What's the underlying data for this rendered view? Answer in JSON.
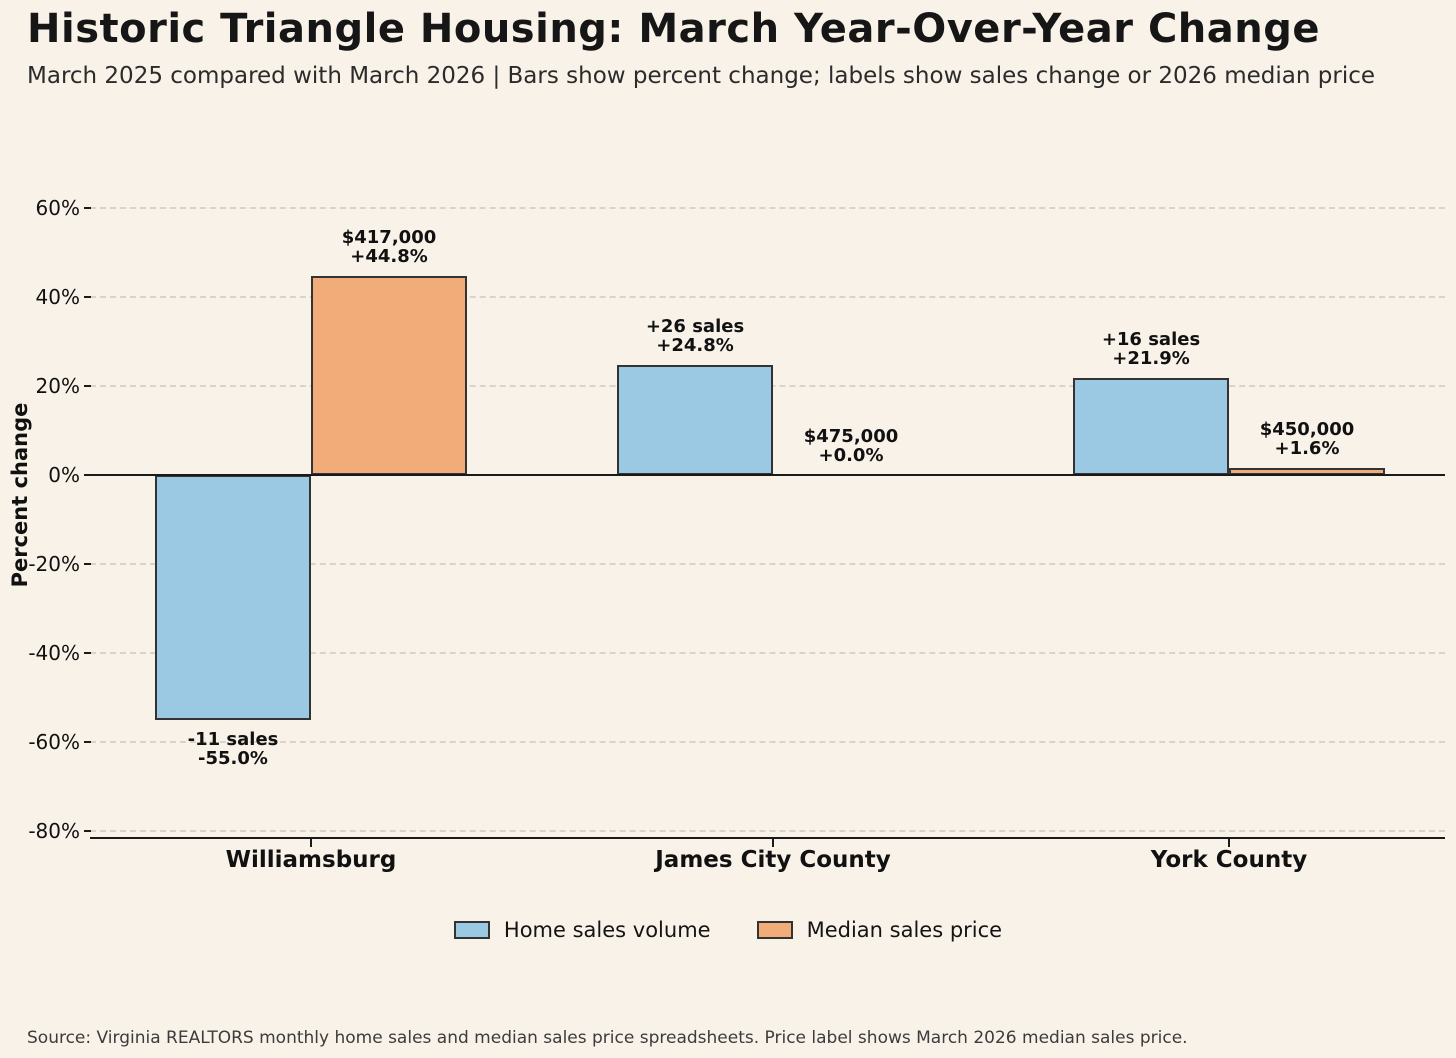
{
  "chart_data": {
    "type": "bar",
    "title": "Historic Triangle Housing: March Year-Over-Year Change",
    "subtitle": "March 2025 compared with March 2026 | Bars show percent change; labels show sales change or 2026 median price",
    "ylabel": "Percent change",
    "source_note": "Source: Virginia REALTORS monthly home sales and median sales price spreadsheets. Price label shows March 2026 median sales price.",
    "categories": [
      "Williamsburg",
      "James City County",
      "York County"
    ],
    "series": [
      {
        "name": "Home sales volume",
        "color": "#9bc9e3",
        "values": [
          -55.0,
          24.8,
          21.9
        ],
        "bar_labels": [
          "-11 sales\n-55.0%",
          "+26 sales\n+24.8%",
          "+16 sales\n+21.9%"
        ]
      },
      {
        "name": "Median sales price",
        "color": "#f2ac79",
        "values": [
          44.8,
          0.0,
          1.6
        ],
        "bar_labels": [
          "$417,000\n+44.8%",
          "$475,000\n+0.0%",
          "$450,000\n+1.6%"
        ]
      }
    ],
    "yticks": [
      60,
      40,
      20,
      0,
      -20,
      -40,
      -60,
      -80
    ],
    "ytick_suffix": "%",
    "ylim": [
      -82,
      66
    ],
    "grid": "horizontal-dashed",
    "legend_position": "bottom-center",
    "colors": {
      "background": "#f9f2e9",
      "grid_line": "#d9d3ca",
      "zero_line": "#1a1a1a",
      "axis_line": "#1a1a1a",
      "bar_edge": "#333333",
      "text": "#111111"
    }
  }
}
